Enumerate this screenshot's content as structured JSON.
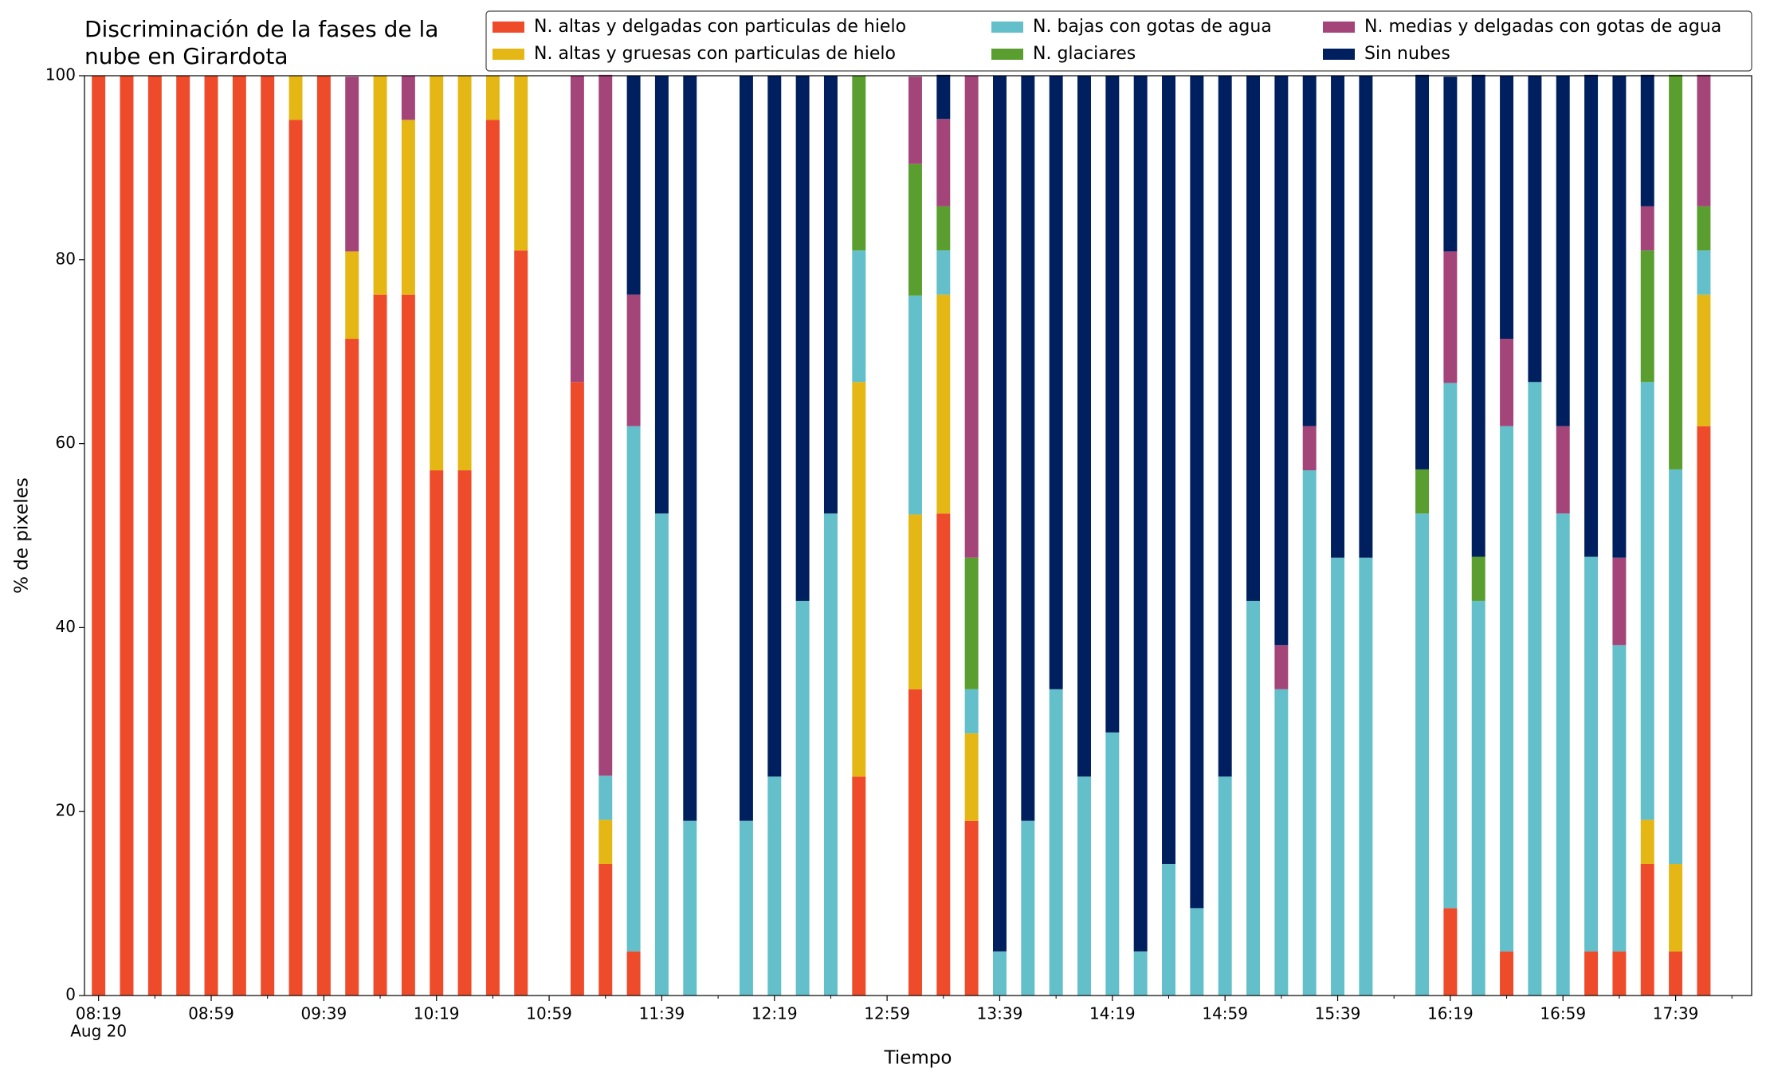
{
  "chart_data": {
    "type": "stacked_bar",
    "title": "Discriminación de la fases de la\nnube en Girardota",
    "xlabel": "Tiempo",
    "ylabel": "% de pixeles",
    "x_date_label": "Aug 20",
    "x": [
      "08:19",
      "08:29",
      "08:39",
      "08:49",
      "08:59",
      "09:09",
      "09:19",
      "09:29",
      "09:39",
      "09:49",
      "09:59",
      "10:09",
      "10:19",
      "10:29",
      "10:39",
      "10:49",
      "11:09",
      "11:19",
      "11:29",
      "11:39",
      "11:49",
      "12:09",
      "12:19",
      "12:29",
      "12:39",
      "12:49",
      "13:09",
      "13:19",
      "13:29",
      "13:39",
      "13:49",
      "13:59",
      "14:09",
      "14:19",
      "14:29",
      "14:39",
      "14:49",
      "14:59",
      "15:09",
      "15:19",
      "15:29",
      "15:39",
      "15:49",
      "16:09",
      "16:19",
      "16:29",
      "16:39",
      "16:49",
      "16:59",
      "17:09",
      "17:19",
      "17:29",
      "17:39",
      "17:49"
    ],
    "xlim": [
      "08:14",
      "18:06"
    ],
    "xticks": [
      "08:19",
      "08:59",
      "09:39",
      "10:19",
      "10:59",
      "11:39",
      "12:19",
      "12:59",
      "13:39",
      "14:19",
      "14:59",
      "15:39",
      "16:19",
      "16:59",
      "17:39"
    ],
    "ylim": [
      0,
      100
    ],
    "yticks": [
      0,
      20,
      40,
      60,
      80,
      100
    ],
    "legend": "top-right",
    "series": [
      {
        "name": "N. altas y delgadas con particulas de hielo",
        "color": "#ee4b2b",
        "values": [
          100,
          100,
          100,
          100,
          100,
          100,
          100,
          95.2,
          100,
          71.4,
          76.2,
          76.2,
          57.1,
          57.1,
          95.2,
          81.0,
          66.7,
          14.3,
          4.8,
          0,
          0,
          0,
          0,
          0,
          0,
          23.8,
          33.3,
          52.4,
          19.0,
          0,
          0,
          0,
          0,
          0,
          0,
          0,
          0,
          0,
          0,
          0,
          0,
          0,
          0,
          0,
          9.5,
          0,
          4.8,
          0,
          0,
          4.8,
          4.8,
          14.3,
          4.8,
          61.9
        ]
      },
      {
        "name": "N. altas y gruesas con particulas de hielo",
        "color": "#e4b715",
        "values": [
          0,
          0,
          0,
          0,
          0,
          0,
          0,
          4.8,
          0,
          9.5,
          23.8,
          19.0,
          42.9,
          42.9,
          4.8,
          19.0,
          0,
          4.8,
          0,
          0,
          0,
          0,
          0,
          0,
          0,
          42.9,
          19.0,
          23.8,
          9.5,
          0,
          0,
          0,
          0,
          0,
          0,
          0,
          0,
          0,
          0,
          0,
          0,
          0,
          0,
          0,
          0,
          0,
          0,
          0,
          0,
          0,
          0,
          4.8,
          9.5,
          14.3
        ]
      },
      {
        "name": "N. bajas con gotas de agua",
        "color": "#63bfca",
        "values": [
          0,
          0,
          0,
          0,
          0,
          0,
          0,
          0,
          0,
          0,
          0,
          0,
          0,
          0,
          0,
          0,
          0,
          4.8,
          57.1,
          52.4,
          19.0,
          19.0,
          23.8,
          42.9,
          52.4,
          14.3,
          23.8,
          4.8,
          4.8,
          4.8,
          19.0,
          33.3,
          23.8,
          28.6,
          4.8,
          14.3,
          9.5,
          23.8,
          42.9,
          33.3,
          57.1,
          47.6,
          47.6,
          52.4,
          57.1,
          42.9,
          57.1,
          66.7,
          52.4,
          42.9,
          33.3,
          47.6,
          42.9,
          4.8
        ]
      },
      {
        "name": "N. glaciares",
        "color": "#5a9e2f",
        "values": [
          0,
          0,
          0,
          0,
          0,
          0,
          0,
          0,
          0,
          0,
          0,
          0,
          0,
          0,
          0,
          0,
          0,
          0,
          0,
          0,
          0,
          0,
          0,
          0,
          0,
          19.0,
          14.3,
          4.8,
          14.3,
          0,
          0,
          0,
          0,
          0,
          0,
          0,
          0,
          0,
          0,
          0,
          0,
          0,
          0,
          4.8,
          0,
          4.8,
          0,
          0,
          0,
          0,
          0,
          14.3,
          42.9,
          4.8
        ]
      },
      {
        "name": "N. medias y delgadas con gotas de agua",
        "color": "#a4457a",
        "values": [
          0,
          0,
          0,
          0,
          0,
          0,
          0,
          0,
          0,
          19.0,
          0,
          4.8,
          0,
          0,
          0,
          0,
          33.3,
          76.2,
          14.3,
          0,
          0,
          0,
          0,
          0,
          0,
          0,
          9.5,
          9.5,
          52.4,
          0,
          0,
          0,
          0,
          0,
          0,
          0,
          0,
          0,
          0,
          4.8,
          4.8,
          0,
          0,
          0,
          14.3,
          0,
          9.5,
          0,
          9.5,
          0,
          9.5,
          4.8,
          0,
          14.3
        ]
      },
      {
        "name": "Sin nubes",
        "color": "#001f5f",
        "values": [
          0,
          0,
          0,
          0,
          0,
          0,
          0,
          0,
          0,
          0,
          0,
          0,
          0,
          0,
          0,
          0,
          0,
          0,
          23.8,
          47.6,
          81.0,
          81.0,
          76.2,
          57.1,
          47.6,
          0,
          0,
          4.8,
          0,
          95.2,
          81.0,
          66.7,
          76.2,
          71.4,
          95.2,
          85.7,
          90.5,
          76.2,
          57.1,
          61.9,
          38.1,
          52.4,
          52.4,
          42.9,
          19.0,
          52.4,
          28.6,
          33.3,
          38.1,
          52.4,
          52.4,
          14.3,
          0,
          0
        ]
      }
    ]
  }
}
